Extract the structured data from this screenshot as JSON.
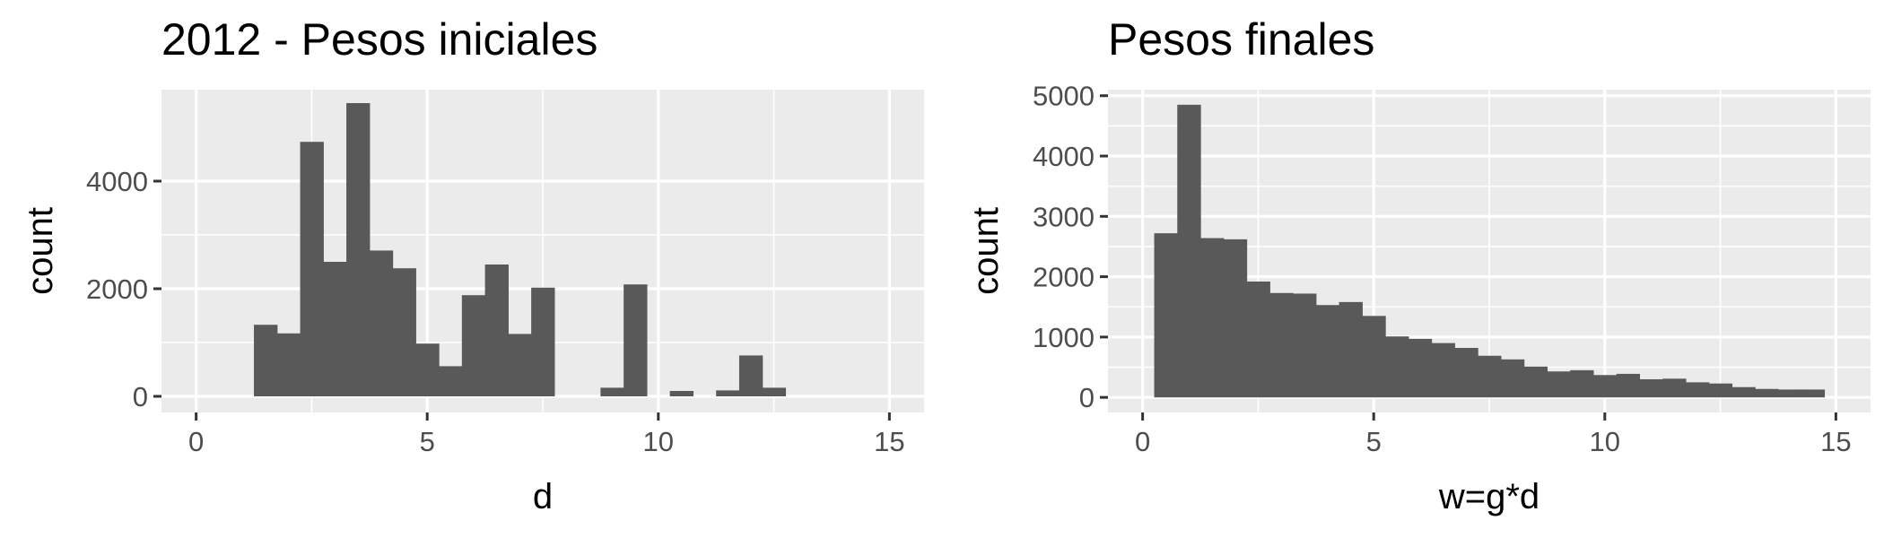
{
  "chart_data": [
    {
      "type": "bar",
      "title": "2012 - Pesos iniciales",
      "xlabel": "d",
      "ylabel": "count",
      "xlim": [
        -0.75,
        15.75
      ],
      "ylim": [
        -300,
        5700
      ],
      "x_ticks": [
        0,
        5,
        10,
        15
      ],
      "x_tick_labels": [
        "0",
        "5",
        "10",
        "15"
      ],
      "y_ticks": [
        0,
        2000,
        4000
      ],
      "y_tick_labels": [
        "0",
        "2000",
        "4000"
      ],
      "bin_width": 0.5,
      "grid": true,
      "bins_start": [
        1.25,
        1.75,
        2.25,
        2.75,
        3.25,
        3.75,
        4.25,
        4.75,
        5.25,
        5.75,
        6.25,
        6.75,
        7.25,
        7.75,
        8.25,
        8.75,
        9.25,
        9.75,
        10.25,
        10.75,
        11.25,
        11.75,
        12.25
      ],
      "values": [
        1330,
        1170,
        4730,
        2500,
        5450,
        2710,
        2380,
        980,
        560,
        1880,
        2450,
        1160,
        2020,
        0,
        0,
        160,
        2080,
        0,
        100,
        0,
        110,
        760,
        160
      ]
    },
    {
      "type": "bar",
      "title": "Pesos finales",
      "xlabel": "w=g*d",
      "ylabel": "count",
      "xlim": [
        -0.75,
        15.75
      ],
      "ylim": [
        -250,
        5100
      ],
      "x_ticks": [
        0,
        5,
        10,
        15
      ],
      "x_tick_labels": [
        "0",
        "5",
        "10",
        "15"
      ],
      "y_ticks": [
        0,
        1000,
        2000,
        3000,
        4000,
        5000
      ],
      "y_tick_labels": [
        "0",
        "1000",
        "2000",
        "3000",
        "4000",
        "5000"
      ],
      "bin_width": 0.5,
      "grid": true,
      "bins_start": [
        0.25,
        0.75,
        1.25,
        1.75,
        2.25,
        2.75,
        3.25,
        3.75,
        4.25,
        4.75,
        5.25,
        5.75,
        6.25,
        6.75,
        7.25,
        7.75,
        8.25,
        8.75,
        9.25,
        9.75,
        10.25,
        10.75,
        11.25,
        11.75,
        12.25,
        12.75,
        13.25,
        13.75,
        14.25
      ],
      "values": [
        2720,
        4850,
        2640,
        2620,
        1920,
        1730,
        1720,
        1530,
        1580,
        1350,
        1010,
        970,
        900,
        820,
        690,
        630,
        510,
        430,
        450,
        370,
        390,
        300,
        310,
        250,
        230,
        170,
        140,
        130,
        130
      ]
    }
  ]
}
